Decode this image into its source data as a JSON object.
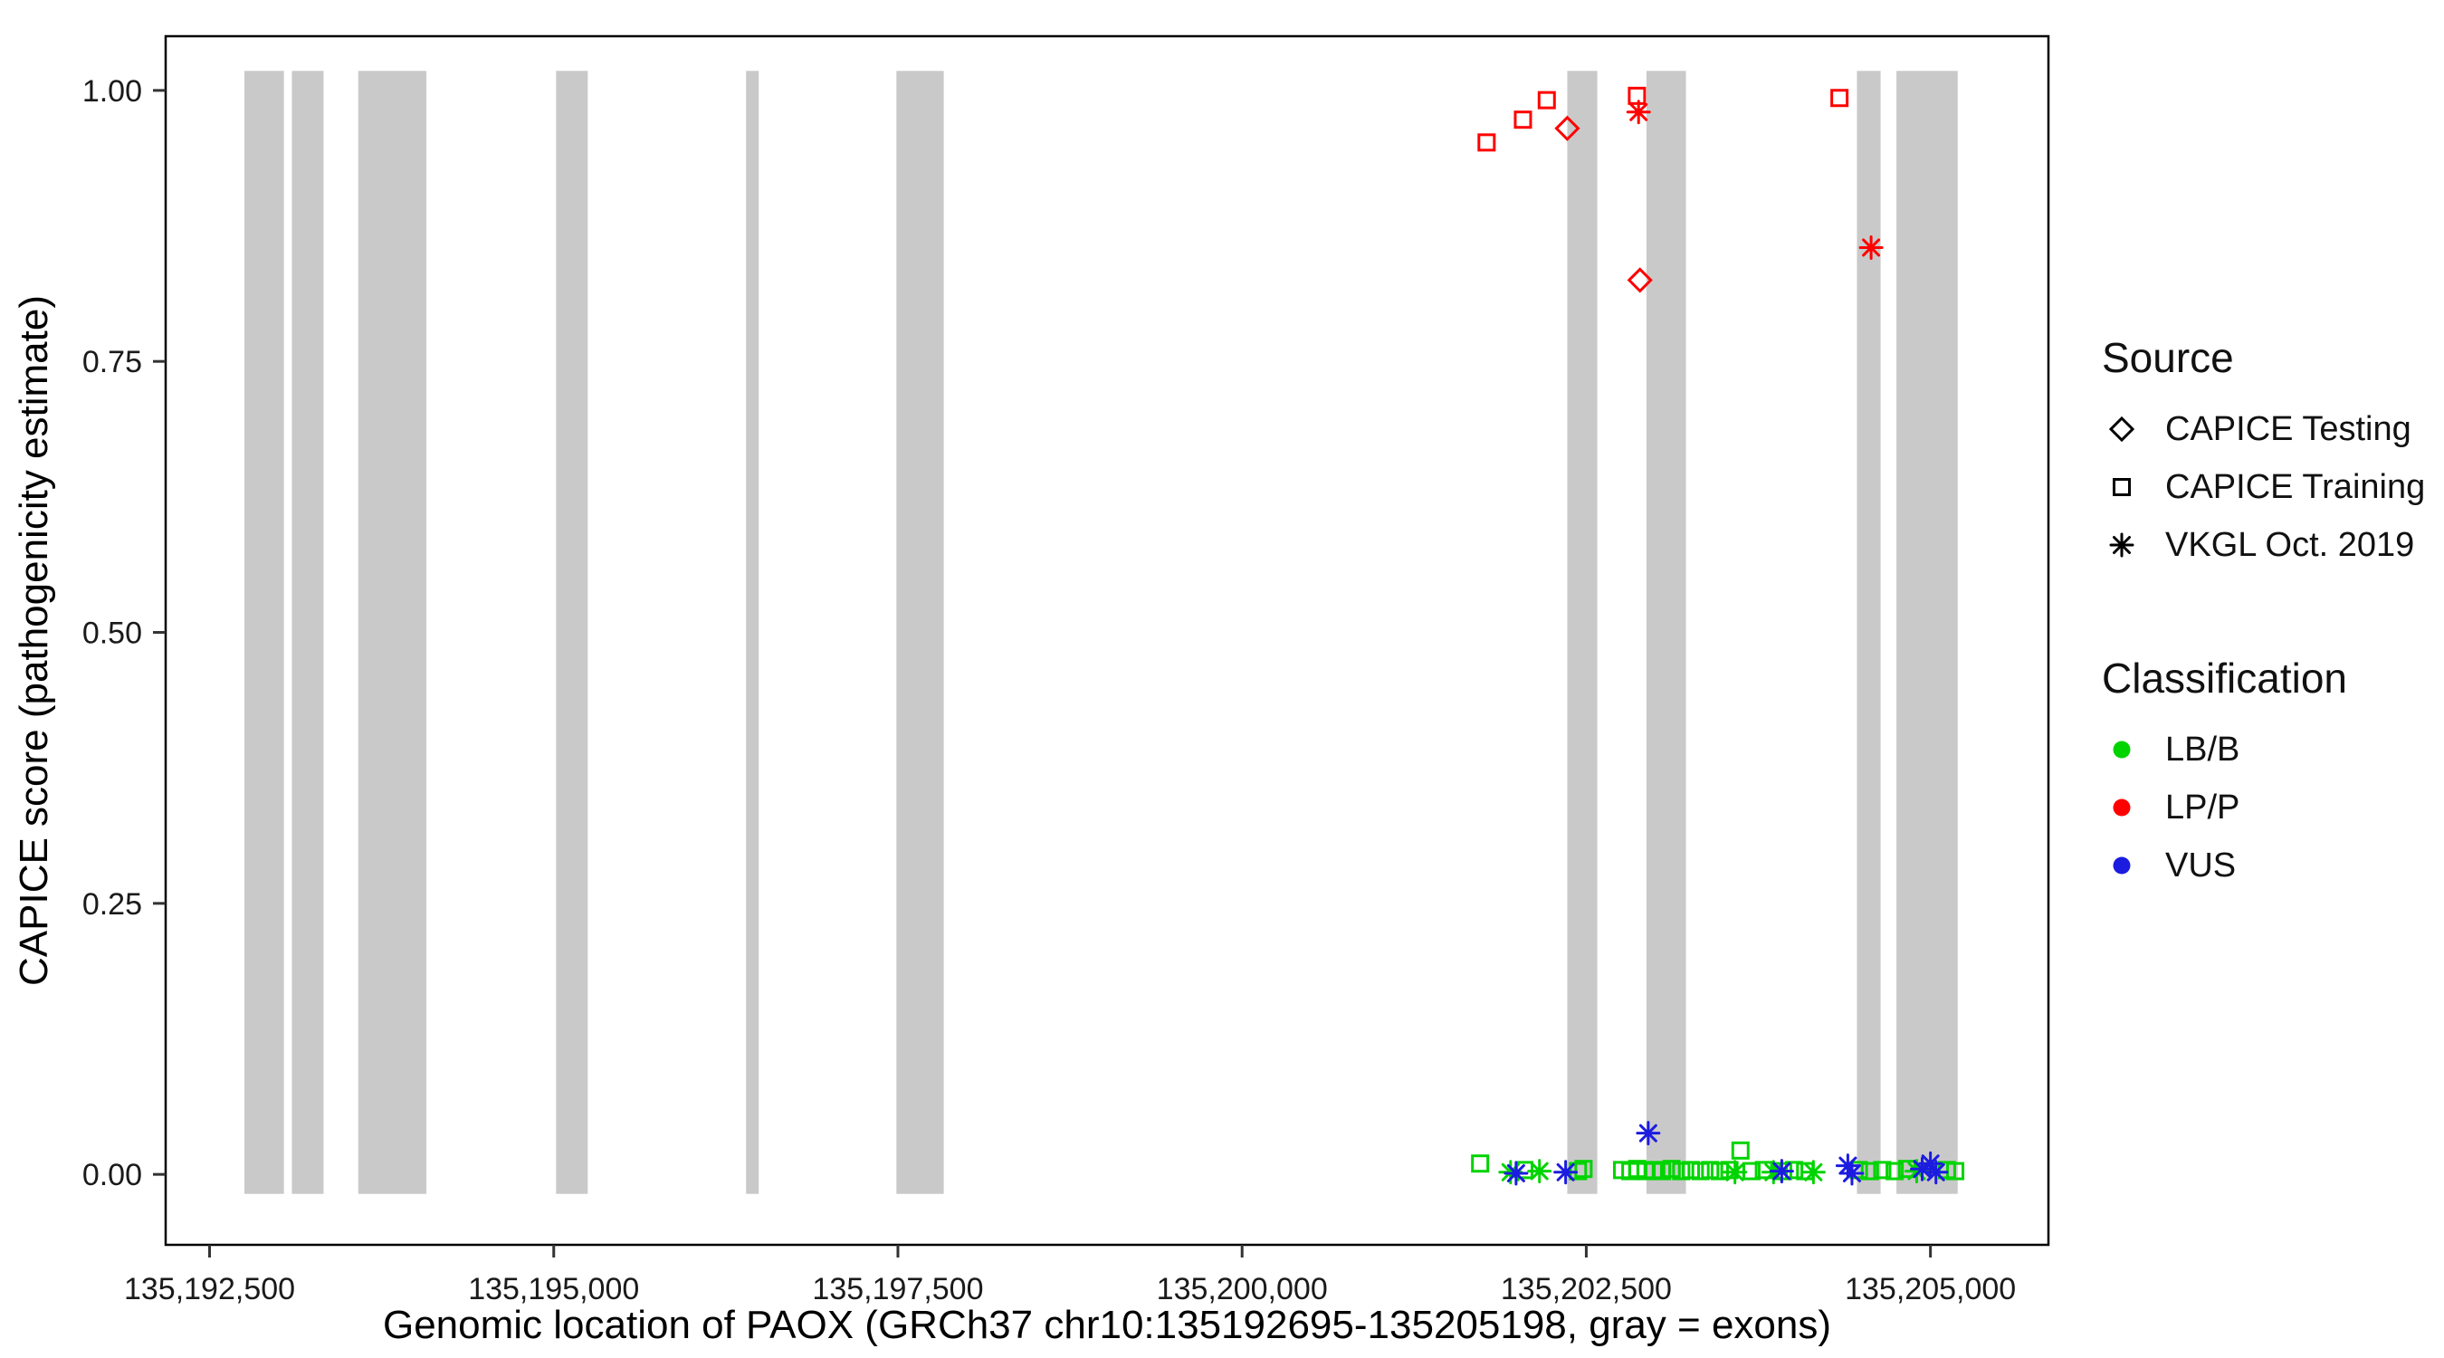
{
  "legend": {
    "source": {
      "title": "Source",
      "items": [
        {
          "label": "CAPICE Testing",
          "shape": "diamond"
        },
        {
          "label": "CAPICE Training",
          "shape": "square"
        },
        {
          "label": "VKGL Oct. 2019",
          "shape": "asterisk"
        }
      ]
    },
    "classification": {
      "title": "Classification",
      "items": [
        {
          "label": "LB/B",
          "color": "#00D400"
        },
        {
          "label": "LP/P",
          "color": "#FF0000"
        },
        {
          "label": "VUS",
          "color": "#1C1CE0"
        }
      ]
    }
  },
  "chart_data": {
    "type": "scatter",
    "title": "",
    "xlabel": "Genomic location of PAOX (GRCh37 chr10:135192695-135205198, gray = exons)",
    "ylabel": "CAPICE score (pathogenicity estimate)",
    "xlim": [
      135192181,
      135205857
    ],
    "ylim": [
      -0.065,
      1.05
    ],
    "x_ticks": [
      135192500,
      135195000,
      135197500,
      135200000,
      135202500,
      135205000
    ],
    "x_tick_labels": [
      "135,192,500",
      "135,195,000",
      "135,197,500",
      "135,200,000",
      "135,202,500",
      "135,205,000"
    ],
    "y_ticks": [
      0,
      0.25,
      0.5,
      0.75,
      1.0
    ],
    "y_tick_labels": [
      "0.00",
      "0.25",
      "0.50",
      "0.75",
      "1.00"
    ],
    "grid": "off",
    "legend_position": "right",
    "exon_color": "#C9C9C9",
    "exon_y_range": [
      -0.018,
      1.018
    ],
    "exons": [
      [
        135192753,
        135193040
      ],
      [
        135193098,
        135193328
      ],
      [
        135193580,
        135194075
      ],
      [
        135195017,
        135195247
      ],
      [
        135196397,
        135196489
      ],
      [
        135197489,
        135197833
      ],
      [
        135202362,
        135202580
      ],
      [
        135202937,
        135203224
      ],
      [
        135204466,
        135204638
      ],
      [
        135204753,
        135205198
      ]
    ],
    "colors": {
      "LB/B": "#00D400",
      "LP/P": "#FF0000",
      "VUS": "#1C1CE0"
    },
    "shapes": {
      "CAPICE Testing": "diamond",
      "CAPICE Training": "square",
      "VKGL Oct. 2019": "asterisk"
    },
    "points": [
      {
        "x": 135201729,
        "y": 0.01,
        "source": "CAPICE Training",
        "classification": "LB/B"
      },
      {
        "x": 135202050,
        "y": 0.004,
        "source": "CAPICE Training",
        "classification": "LB/B"
      },
      {
        "x": 135202440,
        "y": 0.003,
        "source": "CAPICE Training",
        "classification": "LB/B"
      },
      {
        "x": 135202480,
        "y": 0.005,
        "source": "CAPICE Training",
        "classification": "LB/B"
      },
      {
        "x": 135202760,
        "y": 0.004,
        "source": "CAPICE Training",
        "classification": "LB/B"
      },
      {
        "x": 135202820,
        "y": 0.003,
        "source": "CAPICE Training",
        "classification": "LB/B"
      },
      {
        "x": 135202870,
        "y": 0.005,
        "source": "CAPICE Training",
        "classification": "LB/B"
      },
      {
        "x": 135202930,
        "y": 0.003,
        "source": "CAPICE Training",
        "classification": "LB/B"
      },
      {
        "x": 135202990,
        "y": 0.004,
        "source": "CAPICE Training",
        "classification": "LB/B"
      },
      {
        "x": 135203050,
        "y": 0.003,
        "source": "CAPICE Training",
        "classification": "LB/B"
      },
      {
        "x": 135203120,
        "y": 0.005,
        "source": "CAPICE Training",
        "classification": "LB/B"
      },
      {
        "x": 135203190,
        "y": 0.003,
        "source": "CAPICE Training",
        "classification": "LB/B"
      },
      {
        "x": 135203260,
        "y": 0.004,
        "source": "CAPICE Training",
        "classification": "LB/B"
      },
      {
        "x": 135203330,
        "y": 0.003,
        "source": "CAPICE Training",
        "classification": "LB/B"
      },
      {
        "x": 135203400,
        "y": 0.004,
        "source": "CAPICE Training",
        "classification": "LB/B"
      },
      {
        "x": 135203470,
        "y": 0.003,
        "source": "CAPICE Training",
        "classification": "LB/B"
      },
      {
        "x": 135203540,
        "y": 0.004,
        "source": "CAPICE Training",
        "classification": "LB/B"
      },
      {
        "x": 135203620,
        "y": 0.022,
        "source": "CAPICE Training",
        "classification": "LB/B"
      },
      {
        "x": 135203700,
        "y": 0.003,
        "source": "CAPICE Training",
        "classification": "LB/B"
      },
      {
        "x": 135203790,
        "y": 0.004,
        "source": "CAPICE Training",
        "classification": "LB/B"
      },
      {
        "x": 135203930,
        "y": 0.003,
        "source": "CAPICE Training",
        "classification": "LB/B"
      },
      {
        "x": 135204010,
        "y": 0.004,
        "source": "CAPICE Training",
        "classification": "LB/B"
      },
      {
        "x": 135204090,
        "y": 0.003,
        "source": "CAPICE Training",
        "classification": "LB/B"
      },
      {
        "x": 135204480,
        "y": 0.004,
        "source": "CAPICE Training",
        "classification": "LB/B"
      },
      {
        "x": 135204560,
        "y": 0.003,
        "source": "CAPICE Training",
        "classification": "LB/B"
      },
      {
        "x": 135204650,
        "y": 0.004,
        "source": "CAPICE Training",
        "classification": "LB/B"
      },
      {
        "x": 135204740,
        "y": 0.003,
        "source": "CAPICE Training",
        "classification": "LB/B"
      },
      {
        "x": 135204830,
        "y": 0.005,
        "source": "CAPICE Training",
        "classification": "LB/B"
      },
      {
        "x": 135205120,
        "y": 0.004,
        "source": "CAPICE Training",
        "classification": "LB/B"
      },
      {
        "x": 135205180,
        "y": 0.003,
        "source": "CAPICE Training",
        "classification": "LB/B"
      },
      {
        "x": 135201950,
        "y": 0.002,
        "source": "VKGL Oct. 2019",
        "classification": "LB/B"
      },
      {
        "x": 135202160,
        "y": 0.003,
        "source": "VKGL Oct. 2019",
        "classification": "LB/B"
      },
      {
        "x": 135203580,
        "y": 0.002,
        "source": "VKGL Oct. 2019",
        "classification": "LB/B"
      },
      {
        "x": 135203860,
        "y": 0.002,
        "source": "VKGL Oct. 2019",
        "classification": "LB/B"
      },
      {
        "x": 135204150,
        "y": 0.002,
        "source": "VKGL Oct. 2019",
        "classification": "LB/B"
      },
      {
        "x": 135204900,
        "y": 0.003,
        "source": "VKGL Oct. 2019",
        "classification": "LB/B"
      },
      {
        "x": 135201990,
        "y": 0.001,
        "source": "VKGL Oct. 2019",
        "classification": "VUS"
      },
      {
        "x": 135202350,
        "y": 0.002,
        "source": "VKGL Oct. 2019",
        "classification": "VUS"
      },
      {
        "x": 135202950,
        "y": 0.038,
        "source": "VKGL Oct. 2019",
        "classification": "VUS"
      },
      {
        "x": 135203920,
        "y": 0.003,
        "source": "VKGL Oct. 2019",
        "classification": "VUS"
      },
      {
        "x": 135204400,
        "y": 0.008,
        "source": "VKGL Oct. 2019",
        "classification": "VUS"
      },
      {
        "x": 135204430,
        "y": 0.001,
        "source": "VKGL Oct. 2019",
        "classification": "VUS"
      },
      {
        "x": 135204940,
        "y": 0.005,
        "source": "VKGL Oct. 2019",
        "classification": "VUS"
      },
      {
        "x": 135205000,
        "y": 0.01,
        "source": "VKGL Oct. 2019",
        "classification": "VUS"
      },
      {
        "x": 135205040,
        "y": 0.002,
        "source": "VKGL Oct. 2019",
        "classification": "VUS"
      },
      {
        "x": 135201776,
        "y": 0.952,
        "source": "CAPICE Training",
        "classification": "LP/P"
      },
      {
        "x": 135202040,
        "y": 0.973,
        "source": "CAPICE Training",
        "classification": "LP/P"
      },
      {
        "x": 135202213,
        "y": 0.991,
        "source": "CAPICE Training",
        "classification": "LP/P"
      },
      {
        "x": 135202362,
        "y": 0.965,
        "source": "CAPICE Testing",
        "classification": "LP/P"
      },
      {
        "x": 135202868,
        "y": 0.995,
        "source": "CAPICE Training",
        "classification": "LP/P"
      },
      {
        "x": 135202880,
        "y": 0.98,
        "source": "VKGL Oct. 2019",
        "classification": "LP/P"
      },
      {
        "x": 135202890,
        "y": 0.825,
        "source": "CAPICE Testing",
        "classification": "LP/P"
      },
      {
        "x": 135204339,
        "y": 0.993,
        "source": "CAPICE Training",
        "classification": "LP/P"
      },
      {
        "x": 135204569,
        "y": 0.855,
        "source": "VKGL Oct. 2019",
        "classification": "LP/P"
      }
    ]
  }
}
